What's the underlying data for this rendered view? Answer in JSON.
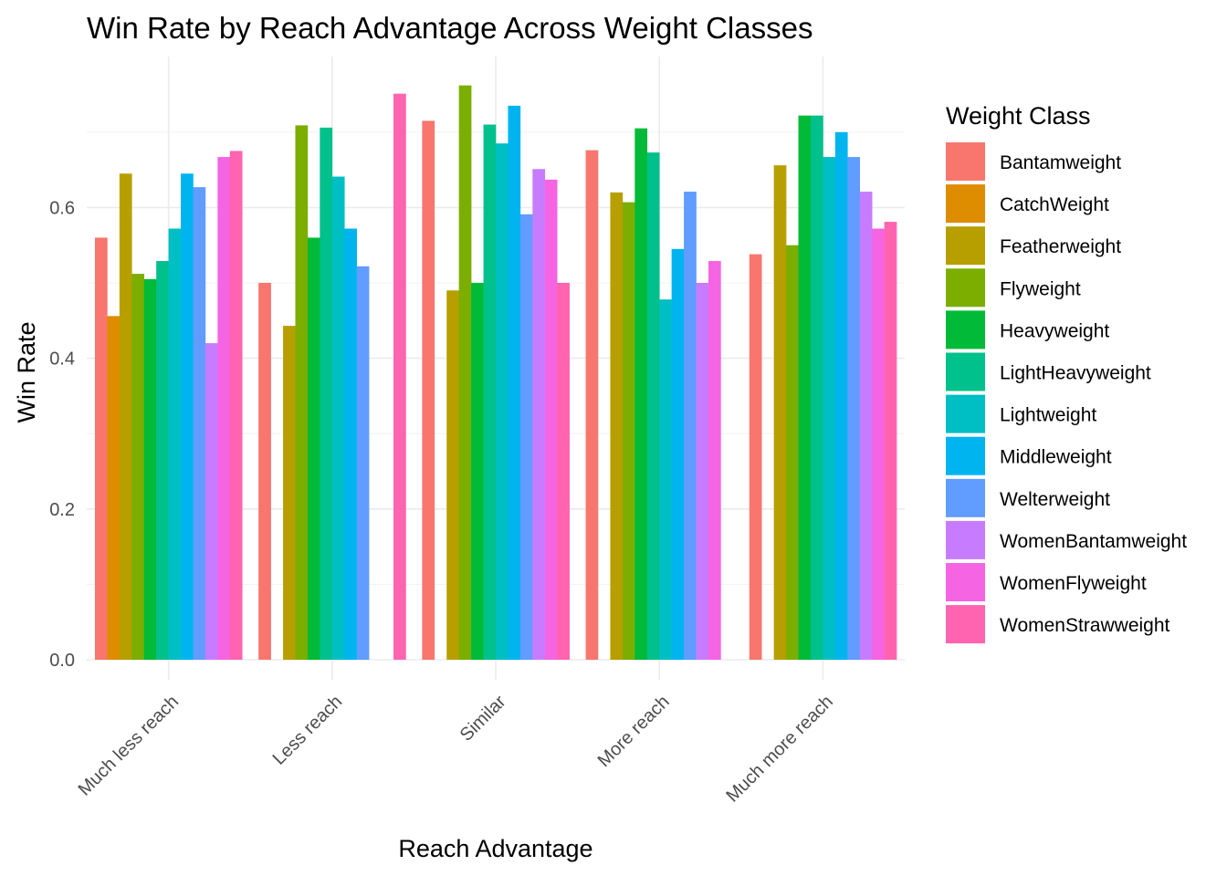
{
  "chart_data": {
    "type": "bar",
    "title": "Win Rate by Reach Advantage Across Weight Classes",
    "xlabel": "Reach Advantage",
    "ylabel": "Win Rate",
    "ylim": [
      0,
      0.8
    ],
    "yticks": [
      "0.0",
      "0.2",
      "0.4",
      "0.6"
    ],
    "grid": true,
    "legend_title": "Weight Class",
    "legend_position": "right",
    "categories": [
      "Much less reach",
      "Less reach",
      "Similar",
      "More reach",
      "Much more reach"
    ],
    "series": [
      {
        "name": "Bantamweight",
        "color": "#F8766D",
        "values": [
          0.56,
          0.5,
          0.715,
          0.676,
          0.538
        ]
      },
      {
        "name": "CatchWeight",
        "color": "#DE8C00",
        "values": [
          0.456,
          null,
          null,
          null,
          null
        ]
      },
      {
        "name": "Featherweight",
        "color": "#B79F00",
        "values": [
          0.645,
          0.443,
          0.49,
          0.62,
          0.656
        ]
      },
      {
        "name": "Flyweight",
        "color": "#7CAE00",
        "values": [
          0.512,
          0.709,
          0.762,
          0.607,
          0.55
        ]
      },
      {
        "name": "Heavyweight",
        "color": "#00BA38",
        "values": [
          0.505,
          0.56,
          0.5,
          0.705,
          0.722
        ]
      },
      {
        "name": "LightHeavyweight",
        "color": "#00C08B",
        "values": [
          0.529,
          0.706,
          0.71,
          0.673,
          0.722
        ]
      },
      {
        "name": "Lightweight",
        "color": "#00BFC4",
        "values": [
          0.572,
          0.641,
          0.685,
          0.478,
          0.667
        ]
      },
      {
        "name": "Middleweight",
        "color": "#00B4F0",
        "values": [
          0.645,
          0.572,
          0.735,
          0.545,
          0.7
        ]
      },
      {
        "name": "Welterweight",
        "color": "#619CFF",
        "values": [
          0.627,
          0.522,
          0.591,
          0.621,
          0.667
        ]
      },
      {
        "name": "WomenBantamweight",
        "color": "#C77CFF",
        "values": [
          0.42,
          null,
          0.651,
          0.5,
          0.621
        ]
      },
      {
        "name": "WomenFlyweight",
        "color": "#F564E3",
        "values": [
          0.667,
          null,
          0.637,
          0.529,
          0.572
        ]
      },
      {
        "name": "WomenStrawweight",
        "color": "#FF64B0",
        "values": [
          0.675,
          0.751,
          0.5,
          null,
          0.581
        ]
      }
    ]
  }
}
